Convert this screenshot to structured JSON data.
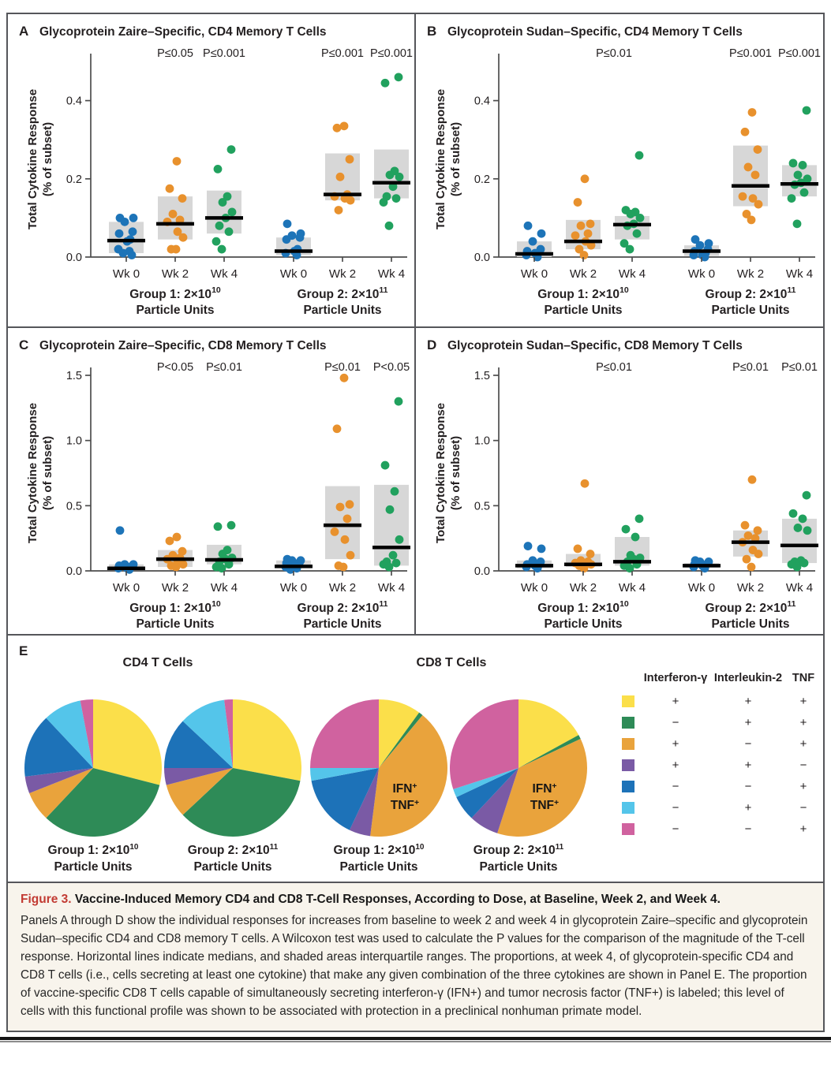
{
  "caption": {
    "label": "Figure 3.",
    "title": "Vaccine-Induced Memory CD4 and CD8 T-Cell Responses, According to Dose, at Baseline, Week 2, and Week 4.",
    "body": "Panels A through D show the individual responses for increases from baseline to week 2 and week 4 in glycoprotein Zaire–specific and glycoprotein Sudan–specific CD4 and CD8 memory T cells. A Wilcoxon test was used to calculate the P values for the comparison of the magnitude of the T-cell response. Horizontal lines indicate medians, and shaded areas interquartile ranges. The proportions, at week 4, of glycoprotein-specific CD4 and CD8 T cells (i.e., cells secreting at least one cytokine) that make any given combination of the three cytokines are shown in Panel E. The proportion of vaccine-specific CD8 T cells capable of simultaneously secreting interferon-γ (IFN+) and tumor necrosis factor (TNF+) is labeled; this level of cells with this functional profile was shown to be associated with protection in a preclinical nonhuman primate model."
  },
  "colors": {
    "dot_blue": "#1d74b8",
    "dot_orange": "#e8912d",
    "dot_green": "#21a15e",
    "iqr_gray": "#d7d7d7",
    "median_black": "#000000",
    "axis": "#4d4d4d",
    "figure_label_red": "#c23b33",
    "caption_bg": "#f8f4ec"
  },
  "legend": {
    "headers": [
      "Interferon-γ",
      "Interleukin-2",
      "TNF"
    ],
    "rows": [
      {
        "color": "#fbdf4a",
        "values": [
          "+",
          "+",
          "+"
        ]
      },
      {
        "color": "#2e8b57",
        "values": [
          "−",
          "+",
          "+"
        ]
      },
      {
        "color": "#e9a33c",
        "values": [
          "+",
          "−",
          "+"
        ]
      },
      {
        "color": "#7a5aa5",
        "values": [
          "+",
          "+",
          "−"
        ]
      },
      {
        "color": "#1d72b8",
        "values": [
          "−",
          "−",
          "+"
        ]
      },
      {
        "color": "#54c5ea",
        "values": [
          "−",
          "+",
          "−"
        ]
      },
      {
        "color": "#d0629f",
        "values": [
          "−",
          "−",
          "+"
        ]
      }
    ]
  },
  "chart_data": [
    {
      "type": "scatter",
      "panel": "A",
      "title": "Glycoprotein Zaire–Specific, CD4 Memory T Cells",
      "ylabel": [
        "Total Cytokine Response",
        "(% of subset)"
      ],
      "ylim": [
        0,
        0.5
      ],
      "yticks": [
        "0.0",
        "0.2",
        "0.4"
      ],
      "categories": [
        "Wk 0",
        "Wk 2",
        "Wk 4",
        "Wk 0",
        "Wk 2",
        "Wk 4"
      ],
      "series_colors": [
        "blue",
        "orange",
        "green",
        "blue",
        "orange",
        "green"
      ],
      "group_labels": [
        {
          "base": "Group 1: 2×10",
          "exp": "10",
          "line2": "Particle Units"
        },
        {
          "base": "Group 2: 2×10",
          "exp": "11",
          "line2": "Particle Units"
        }
      ],
      "p_labels": [
        {
          "col": 1,
          "text": "P≤0.05"
        },
        {
          "col": 2,
          "text": "P≤0.001"
        },
        {
          "col": 4,
          "text": "P≤0.001"
        },
        {
          "col": 5,
          "text": "P≤0.001"
        }
      ],
      "columns": [
        {
          "points": [
            0.1,
            0.1,
            0.09,
            0.065,
            0.06,
            0.045,
            0.04,
            0.02,
            0.015,
            0.01,
            0.005
          ],
          "median": 0.042,
          "iqr": [
            0.01,
            0.09
          ]
        },
        {
          "points": [
            0.245,
            0.175,
            0.15,
            0.11,
            0.095,
            0.09,
            0.065,
            0.05,
            0.02,
            0.02
          ],
          "median": 0.085,
          "iqr": [
            0.045,
            0.155
          ]
        },
        {
          "points": [
            0.275,
            0.225,
            0.155,
            0.14,
            0.115,
            0.1,
            0.08,
            0.065,
            0.04,
            0.02
          ],
          "median": 0.1,
          "iqr": [
            0.06,
            0.17
          ]
        },
        {
          "points": [
            0.085,
            0.06,
            0.055,
            0.05,
            0.045,
            0.02,
            0.015,
            0.01,
            0.005
          ],
          "median": 0.015,
          "iqr": [
            0.005,
            0.05
          ]
        },
        {
          "points": [
            0.335,
            0.33,
            0.25,
            0.205,
            0.16,
            0.155,
            0.15,
            0.145,
            0.12
          ],
          "median": 0.16,
          "iqr": [
            0.145,
            0.265
          ]
        },
        {
          "points": [
            0.46,
            0.445,
            0.22,
            0.21,
            0.205,
            0.18,
            0.155,
            0.15,
            0.14,
            0.08
          ],
          "median": 0.19,
          "iqr": [
            0.15,
            0.275
          ]
        }
      ]
    },
    {
      "type": "scatter",
      "panel": "B",
      "title": "Glycoprotein Sudan–Specific, CD4 Memory T Cells",
      "ylabel": [
        "Total Cytokine Response",
        "(% of subset)"
      ],
      "ylim": [
        0,
        0.5
      ],
      "yticks": [
        "0.0",
        "0.2",
        "0.4"
      ],
      "categories": [
        "Wk 0",
        "Wk 2",
        "Wk 4",
        "Wk 0",
        "Wk 2",
        "Wk 4"
      ],
      "series_colors": [
        "blue",
        "orange",
        "green",
        "blue",
        "orange",
        "green"
      ],
      "group_labels": [
        {
          "base": "Group 1: 2×10",
          "exp": "10",
          "line2": "Particle Units"
        },
        {
          "base": "Group 2: 2×10",
          "exp": "11",
          "line2": "Particle Units"
        }
      ],
      "p_labels": [
        {
          "col": [
            1,
            2
          ],
          "text": "P≤0.01"
        },
        {
          "col": 4,
          "text": "P≤0.001"
        },
        {
          "col": 5,
          "text": "P≤0.001"
        }
      ],
      "columns": [
        {
          "points": [
            0.08,
            0.06,
            0.04,
            0.02,
            0.015,
            0.01,
            0.01,
            0.005,
            0.0
          ],
          "median": 0.008,
          "iqr": [
            0.0,
            0.04
          ]
        },
        {
          "points": [
            0.2,
            0.14,
            0.085,
            0.08,
            0.06,
            0.055,
            0.04,
            0.03,
            0.02,
            0.005
          ],
          "median": 0.04,
          "iqr": [
            0.02,
            0.095
          ]
        },
        {
          "points": [
            0.26,
            0.12,
            0.115,
            0.11,
            0.1,
            0.085,
            0.08,
            0.06,
            0.035,
            0.02
          ],
          "median": 0.083,
          "iqr": [
            0.045,
            0.105
          ]
        },
        {
          "points": [
            0.045,
            0.035,
            0.03,
            0.02,
            0.015,
            0.01,
            0.005,
            0.005,
            0.0
          ],
          "median": 0.015,
          "iqr": [
            0.003,
            0.03
          ]
        },
        {
          "points": [
            0.37,
            0.32,
            0.275,
            0.23,
            0.21,
            0.155,
            0.15,
            0.135,
            0.11,
            0.095
          ],
          "median": 0.182,
          "iqr": [
            0.13,
            0.285
          ]
        },
        {
          "points": [
            0.375,
            0.24,
            0.235,
            0.21,
            0.2,
            0.19,
            0.185,
            0.165,
            0.15,
            0.085
          ],
          "median": 0.187,
          "iqr": [
            0.155,
            0.235
          ]
        }
      ]
    },
    {
      "type": "scatter",
      "panel": "C",
      "title": "Glycoprotein Zaire–Specific, CD8 Memory T Cells",
      "ylabel": [
        "Total Cytokine Response",
        "(% of subset)"
      ],
      "ylim": [
        0,
        1.5
      ],
      "yticks": [
        "0.0",
        "0.5",
        "1.0",
        "1.5"
      ],
      "categories": [
        "Wk 0",
        "Wk 2",
        "Wk 4",
        "Wk 0",
        "Wk 2",
        "Wk 4"
      ],
      "series_colors": [
        "blue",
        "orange",
        "green",
        "blue",
        "orange",
        "green"
      ],
      "group_labels": [
        {
          "base": "Group 1: 2×10",
          "exp": "10",
          "line2": "Particle Units"
        },
        {
          "base": "Group 2: 2×10",
          "exp": "11",
          "line2": "Particle Units"
        }
      ],
      "p_labels": [
        {
          "col": 1,
          "text": "P<0.05"
        },
        {
          "col": 2,
          "text": "P≤0.01"
        },
        {
          "col": 4,
          "text": "P≤0.01"
        },
        {
          "col": 5,
          "text": "P<0.05"
        }
      ],
      "columns": [
        {
          "points": [
            0.31,
            0.05,
            0.05,
            0.04,
            0.04,
            0.03,
            0.02,
            0.02,
            0.01
          ],
          "median": 0.02,
          "iqr": [
            0.01,
            0.05
          ]
        },
        {
          "points": [
            0.26,
            0.23,
            0.15,
            0.12,
            0.1,
            0.09,
            0.08,
            0.05,
            0.04,
            0.03
          ],
          "median": 0.09,
          "iqr": [
            0.03,
            0.16
          ]
        },
        {
          "points": [
            0.35,
            0.34,
            0.16,
            0.13,
            0.1,
            0.09,
            0.07,
            0.05,
            0.03,
            0.02
          ],
          "median": 0.085,
          "iqr": [
            0.05,
            0.2
          ]
        },
        {
          "points": [
            0.09,
            0.08,
            0.08,
            0.07,
            0.06,
            0.05,
            0.04,
            0.03,
            0.02,
            0.01
          ],
          "median": 0.035,
          "iqr": [
            0.02,
            0.08
          ]
        },
        {
          "points": [
            1.48,
            1.09,
            0.51,
            0.49,
            0.4,
            0.3,
            0.24,
            0.12,
            0.04,
            0.03
          ],
          "median": 0.35,
          "iqr": [
            0.09,
            0.65
          ]
        },
        {
          "points": [
            1.3,
            0.81,
            0.61,
            0.47,
            0.24,
            0.12,
            0.07,
            0.06,
            0.05,
            0.03
          ],
          "median": 0.18,
          "iqr": [
            0.04,
            0.66
          ]
        }
      ]
    },
    {
      "type": "scatter",
      "panel": "D",
      "title": "Glycoprotein Sudan–Specific, CD8 Memory T Cells",
      "ylabel": [
        "Total Cytokine Response",
        "(% of subset)"
      ],
      "ylim": [
        0,
        1.5
      ],
      "yticks": [
        "0.0",
        "0.5",
        "1.0",
        "1.5"
      ],
      "categories": [
        "Wk 0",
        "Wk 2",
        "Wk 4",
        "Wk 0",
        "Wk 2",
        "Wk 4"
      ],
      "series_colors": [
        "blue",
        "orange",
        "green",
        "blue",
        "orange",
        "green"
      ],
      "group_labels": [
        {
          "base": "Group 1: 2×10",
          "exp": "10",
          "line2": "Particle Units"
        },
        {
          "base": "Group 2: 2×10",
          "exp": "11",
          "line2": "Particle Units"
        }
      ],
      "p_labels": [
        {
          "col": [
            1,
            2
          ],
          "text": "P≤0.01"
        },
        {
          "col": 4,
          "text": "P≤0.01"
        },
        {
          "col": 5,
          "text": "P≤0.01"
        }
      ],
      "columns": [
        {
          "points": [
            0.19,
            0.17,
            0.08,
            0.07,
            0.05,
            0.04,
            0.04,
            0.03,
            0.02
          ],
          "median": 0.04,
          "iqr": [
            0.02,
            0.08
          ]
        },
        {
          "points": [
            0.67,
            0.17,
            0.13,
            0.08,
            0.07,
            0.06,
            0.05,
            0.05,
            0.04,
            0.02
          ],
          "median": 0.05,
          "iqr": [
            0.03,
            0.13
          ]
        },
        {
          "points": [
            0.4,
            0.32,
            0.26,
            0.12,
            0.1,
            0.09,
            0.07,
            0.05,
            0.04,
            0.02
          ],
          "median": 0.07,
          "iqr": [
            0.04,
            0.26
          ]
        },
        {
          "points": [
            0.08,
            0.07,
            0.07,
            0.06,
            0.05,
            0.04,
            0.04,
            0.03,
            0.02
          ],
          "median": 0.04,
          "iqr": [
            0.025,
            0.06
          ]
        },
        {
          "points": [
            0.7,
            0.35,
            0.31,
            0.27,
            0.25,
            0.22,
            0.16,
            0.13,
            0.09,
            0.03
          ],
          "median": 0.22,
          "iqr": [
            0.11,
            0.31
          ]
        },
        {
          "points": [
            0.58,
            0.44,
            0.4,
            0.33,
            0.31,
            0.08,
            0.07,
            0.06,
            0.05,
            0.03
          ],
          "median": 0.195,
          "iqr": [
            0.06,
            0.4
          ]
        }
      ]
    },
    {
      "type": "pie",
      "panel": "E",
      "section_titles": [
        "CD4 T Cells",
        "CD8 T Cells"
      ],
      "slice_colors": [
        "#fbdf4a",
        "#2e8b57",
        "#e9a33c",
        "#7a5aa5",
        "#1d72b8",
        "#54c5ea",
        "#d0629f"
      ],
      "charts": [
        {
          "group_base": "Group 1: 2×10",
          "group_exp": "10",
          "group_line2": "Particle Units",
          "values": [
            29,
            33,
            7,
            4,
            15,
            9,
            3
          ]
        },
        {
          "group_base": "Group 2: 2×10",
          "group_exp": "11",
          "group_line2": "Particle Units",
          "values": [
            28,
            35,
            8,
            4,
            12,
            11,
            2
          ]
        },
        {
          "group_base": "Group 1: 2×10",
          "group_exp": "10",
          "group_line2": "Particle Units",
          "values": [
            10,
            1,
            41,
            5,
            15,
            3,
            25
          ],
          "slice_label": [
            {
              "base": "IFN",
              "sup": "+"
            },
            {
              "base": "TNF",
              "sup": "+"
            }
          ]
        },
        {
          "group_base": "Group 2: 2×10",
          "group_exp": "11",
          "group_line2": "Particle Units",
          "values": [
            17,
            1,
            37,
            7,
            6,
            2,
            30
          ],
          "slice_label": [
            {
              "base": "IFN",
              "sup": "+"
            },
            {
              "base": "TNF",
              "sup": "+"
            }
          ]
        }
      ]
    }
  ]
}
